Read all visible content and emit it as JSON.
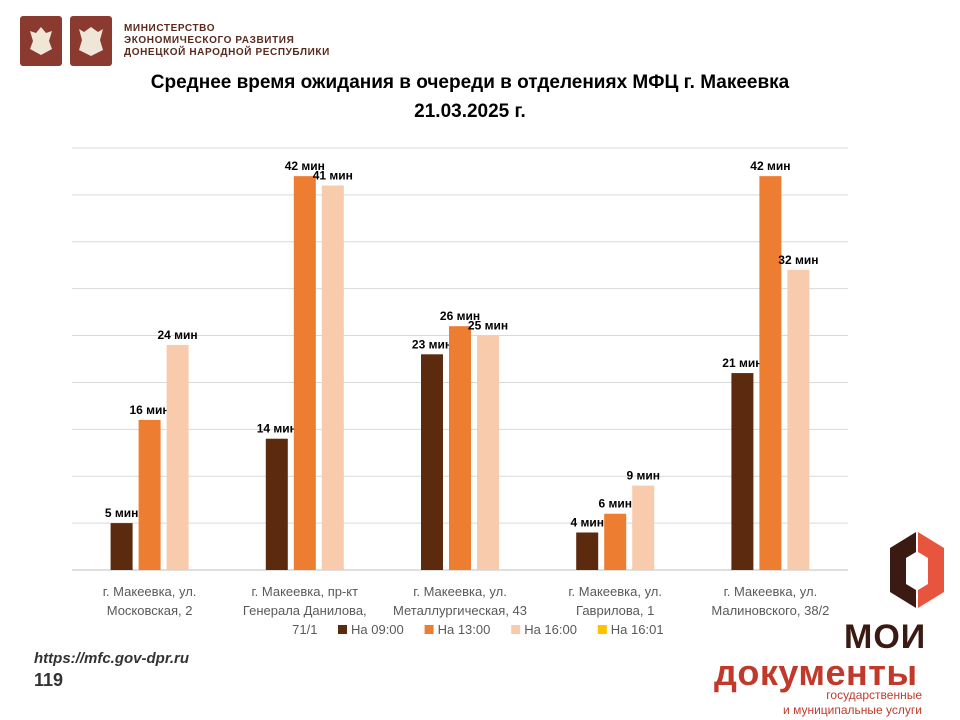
{
  "header": {
    "ministry_line1": "МИНИСТЕРСТВО",
    "ministry_line2": "ЭКОНОМИЧЕСКОГО РАЗВИТИЯ",
    "ministry_line3": "ДОНЕЦКОЙ НАРОДНОЙ РЕСПУБЛИКИ"
  },
  "title_line1": "Среднее время ожидания в очереди в отделениях МФЦ г. Макеевка",
  "title_line2": "21.03.2025 г.",
  "footer": {
    "url": "https://mfc.gov-dpr.ru",
    "page_number": "119"
  },
  "brand": {
    "line1": "МОИ",
    "line2": "документы",
    "line3": "государственные",
    "line4": "и муниципальные услуги",
    "icon": "moi-dokumenty-logo-icon"
  },
  "colors": {
    "s1": "#5c2a0e",
    "s2": "#ed7d31",
    "s3": "#f8cbad",
    "s4": "#ffc000"
  },
  "chart_data": {
    "type": "bar",
    "categories": [
      [
        "г. Макеевка, ул.",
        "Московская, 2"
      ],
      [
        "г. Макеевка, пр-кт",
        "Генерала Данилова,",
        "71/1"
      ],
      [
        "г. Макеевка, ул.",
        "Металлургическая, 43"
      ],
      [
        "г. Макеевка, ул.",
        "Гаврилова, 1"
      ],
      [
        "г. Макеевка, ул.",
        "Малиновского, 38/2"
      ]
    ],
    "series": [
      {
        "name": "На 09:00",
        "values": [
          5,
          14,
          23,
          4,
          21
        ]
      },
      {
        "name": "На 13:00",
        "values": [
          16,
          42,
          26,
          6,
          42
        ]
      },
      {
        "name": "На 16:00",
        "values": [
          24,
          41,
          25,
          9,
          32
        ]
      },
      {
        "name": "На 16:01",
        "values": [
          null,
          null,
          null,
          null,
          null
        ]
      }
    ],
    "value_suffix": " мин",
    "ylim": [
      0,
      45
    ],
    "grid": true,
    "legend": "bottom"
  }
}
